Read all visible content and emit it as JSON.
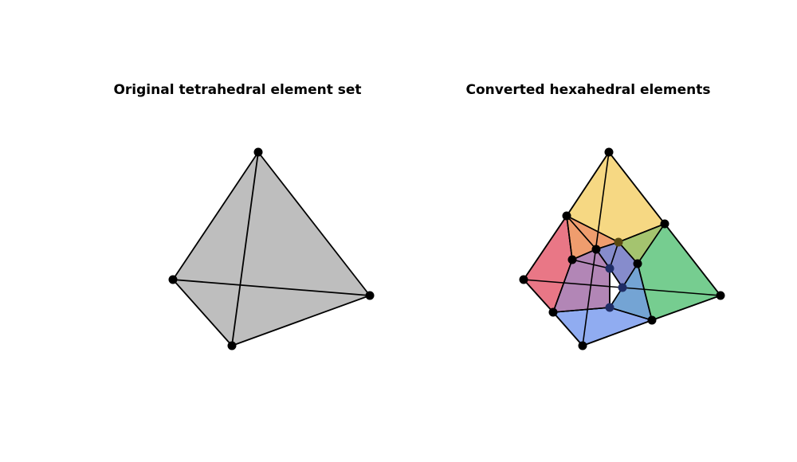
{
  "panels": {
    "left_title": "Original tetrahedral element set",
    "right_title": "Converted hexahedral elements"
  },
  "colors": {
    "tet_fill": "#bebebe",
    "hex_red": "#e8707f",
    "hex_yellow": "#f5d67c",
    "hex_green": "#6fca8a",
    "hex_blue": "#8aa8f0",
    "edge": "#000000",
    "node": "#000000"
  }
}
